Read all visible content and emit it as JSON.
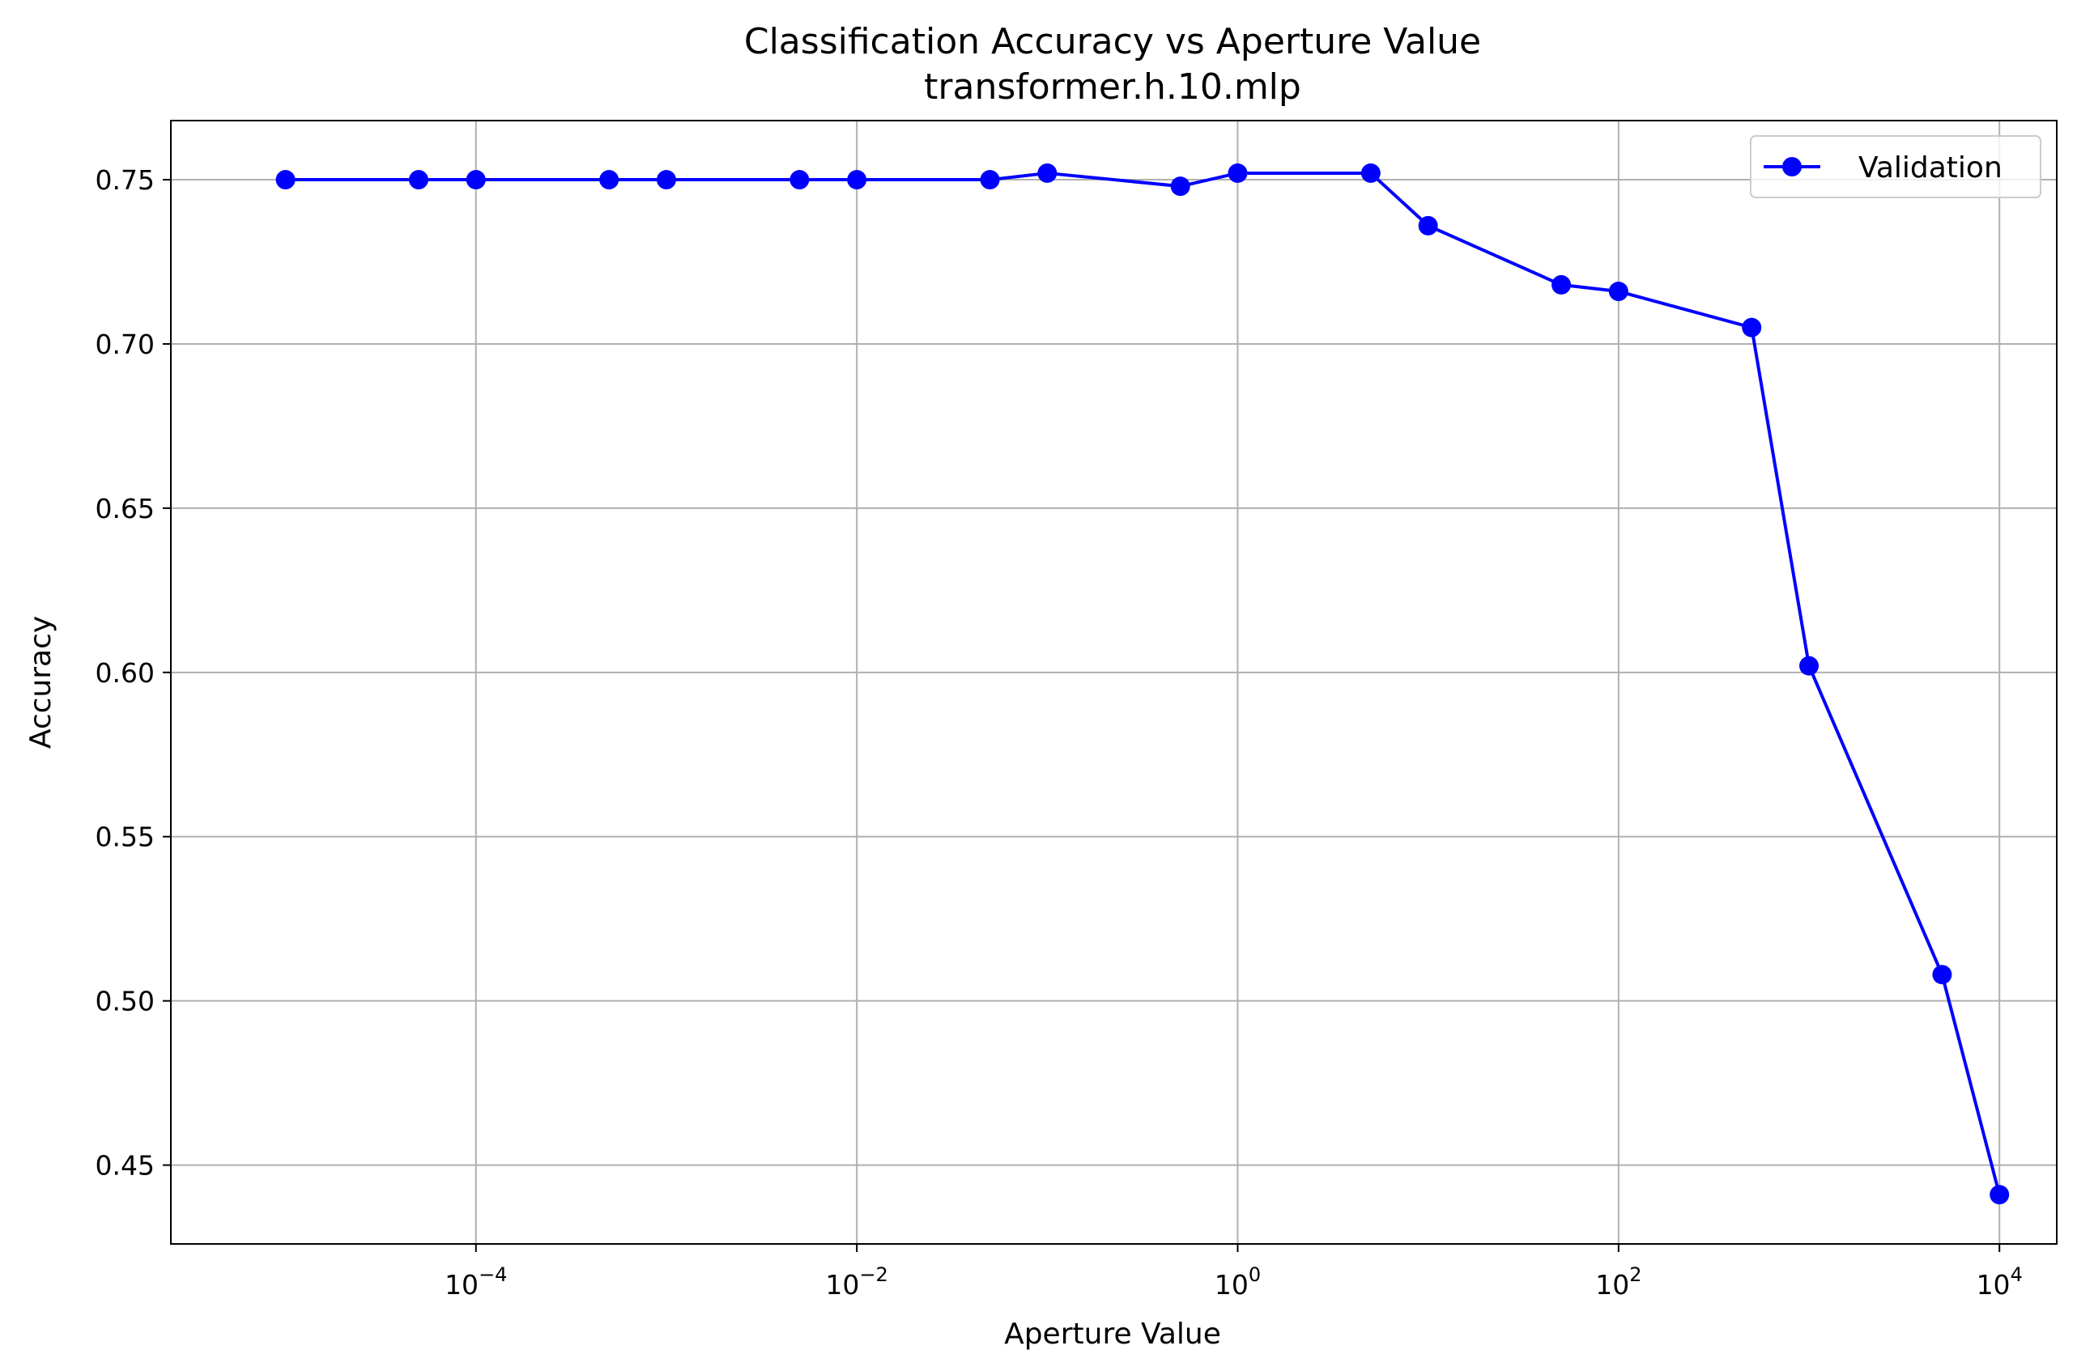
{
  "chart_data": {
    "type": "line",
    "title": "Classification Accuracy vs Aperture Value",
    "subtitle": "transformer.h.10.mlp",
    "xlabel": "Aperture Value",
    "ylabel": "Accuracy",
    "xscale": "log",
    "xlim": [
      2.5e-06,
      20000
    ],
    "ylim": [
      0.426,
      0.768
    ],
    "grid": true,
    "legend_position": "top-right",
    "x_ticks": [
      {
        "value": 0.0001,
        "base": "10",
        "exp": "−4"
      },
      {
        "value": 0.01,
        "base": "10",
        "exp": "−2"
      },
      {
        "value": 1,
        "base": "10",
        "exp": "0"
      },
      {
        "value": 100,
        "base": "10",
        "exp": "2"
      },
      {
        "value": 10000,
        "base": "10",
        "exp": "4"
      }
    ],
    "y_ticks": [
      {
        "value": 0.45,
        "label": "0.45"
      },
      {
        "value": 0.5,
        "label": "0.50"
      },
      {
        "value": 0.55,
        "label": "0.55"
      },
      {
        "value": 0.6,
        "label": "0.60"
      },
      {
        "value": 0.65,
        "label": "0.65"
      },
      {
        "value": 0.7,
        "label": "0.70"
      },
      {
        "value": 0.75,
        "label": "0.75"
      }
    ],
    "series": [
      {
        "name": "Validation",
        "color": "#0000ff",
        "marker": "circle",
        "x": [
          1e-05,
          5e-05,
          0.0001,
          0.0005,
          0.001,
          0.005,
          0.01,
          0.05,
          0.1,
          0.5,
          1,
          5,
          10,
          50,
          100,
          500,
          1000,
          5000,
          10000
        ],
        "y": [
          0.75,
          0.75,
          0.75,
          0.75,
          0.75,
          0.75,
          0.75,
          0.75,
          0.752,
          0.748,
          0.752,
          0.752,
          0.736,
          0.718,
          0.716,
          0.705,
          0.602,
          0.508,
          0.441
        ]
      }
    ]
  }
}
